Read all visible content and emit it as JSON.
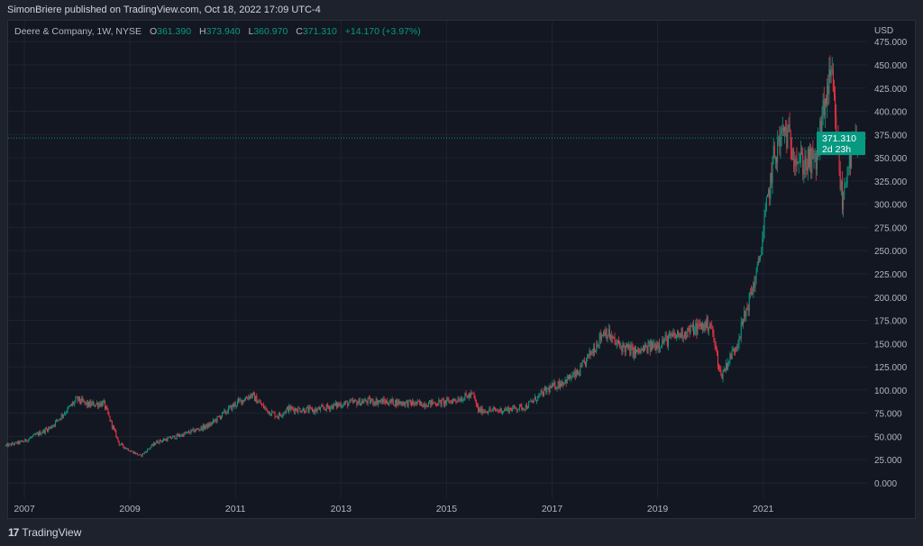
{
  "header": {
    "published": "SimonBriere published on TradingView.com, Oct 18, 2022 17:09 UTC-4"
  },
  "legend": {
    "symbol": "Deere & Company, 1W, NYSE",
    "o_label": "O",
    "o": "361.390",
    "h_label": "H",
    "h": "373.940",
    "l_label": "L",
    "l": "360.970",
    "c_label": "C",
    "c": "371.310",
    "change": "+14.170 (+3.97%)"
  },
  "price_axis": {
    "currency": "USD",
    "last_price": "371.310",
    "countdown": "2d 23h"
  },
  "footer": {
    "brand": "TradingView",
    "logo": "17"
  },
  "colors": {
    "up": "#089981",
    "down": "#f23645",
    "background": "#131722",
    "grid": "#1f2330"
  },
  "chart_data": {
    "type": "candlestick",
    "title": "Deere & Company, 1W, NYSE",
    "interval": "1W",
    "ylabel": "USD",
    "ylim": [
      0,
      475
    ],
    "yticks": [
      "475.000",
      "450.000",
      "425.000",
      "400.000",
      "375.000",
      "350.000",
      "325.000",
      "300.000",
      "275.000",
      "250.000",
      "225.000",
      "200.000",
      "175.000",
      "150.000",
      "125.000",
      "100.000",
      "75.000",
      "50.000",
      "25.000",
      "0.000"
    ],
    "xticks": [
      "2007",
      "2009",
      "2011",
      "2013",
      "2015",
      "2017",
      "2019",
      "2021"
    ],
    "xlim": [
      2006.65,
      2022.8
    ],
    "last_close": 371.31,
    "approx_close_path": [
      [
        2006.65,
        40
      ],
      [
        2007.0,
        45
      ],
      [
        2007.5,
        60
      ],
      [
        2008.0,
        90
      ],
      [
        2008.2,
        84
      ],
      [
        2008.5,
        86
      ],
      [
        2008.8,
        42
      ],
      [
        2009.0,
        35
      ],
      [
        2009.2,
        29
      ],
      [
        2009.5,
        44
      ],
      [
        2010.0,
        52
      ],
      [
        2010.5,
        62
      ],
      [
        2011.0,
        85
      ],
      [
        2011.3,
        95
      ],
      [
        2011.6,
        78
      ],
      [
        2011.8,
        72
      ],
      [
        2012.0,
        80
      ],
      [
        2012.5,
        78
      ],
      [
        2013.0,
        85
      ],
      [
        2013.5,
        88
      ],
      [
        2014.0,
        87
      ],
      [
        2014.5,
        85
      ],
      [
        2015.0,
        87
      ],
      [
        2015.5,
        95
      ],
      [
        2015.6,
        78
      ],
      [
        2016.0,
        78
      ],
      [
        2016.5,
        82
      ],
      [
        2016.9,
        100
      ],
      [
        2017.5,
        118
      ],
      [
        2018.0,
        165
      ],
      [
        2018.2,
        150
      ],
      [
        2018.6,
        140
      ],
      [
        2019.0,
        150
      ],
      [
        2019.5,
        162
      ],
      [
        2020.0,
        172
      ],
      [
        2020.2,
        115
      ],
      [
        2020.5,
        150
      ],
      [
        2020.9,
        230
      ],
      [
        2021.2,
        350
      ],
      [
        2021.4,
        380
      ],
      [
        2021.7,
        345
      ],
      [
        2022.0,
        345
      ],
      [
        2022.2,
        420
      ],
      [
        2022.3,
        435
      ],
      [
        2022.5,
        300
      ],
      [
        2022.6,
        345
      ],
      [
        2022.8,
        371.31
      ]
    ]
  }
}
